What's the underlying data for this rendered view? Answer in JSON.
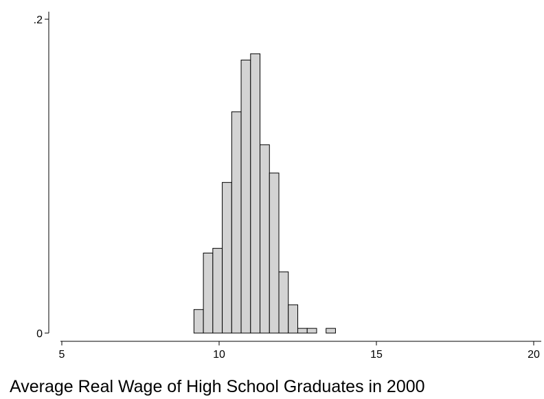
{
  "chart_data": {
    "type": "bar",
    "title": "",
    "xlabel": "Average Real Wage of High School Graduates in 2000",
    "ylabel": "",
    "xlim": [
      5,
      20.2
    ],
    "ylim": [
      0,
      0.2
    ],
    "grid": false,
    "x_ticks": [
      {
        "value": 5,
        "label": "5"
      },
      {
        "value": 10,
        "label": "10"
      },
      {
        "value": 15,
        "label": "15"
      },
      {
        "value": 20,
        "label": "20"
      }
    ],
    "y_ticks": [
      {
        "value": 0,
        "label": "0"
      },
      {
        "value": 0.2,
        "label": ".2"
      }
    ],
    "bin_width": 0.3,
    "bins": [
      {
        "x0": 9.2,
        "x1": 9.5,
        "y": 0.015
      },
      {
        "x0": 9.5,
        "x1": 9.8,
        "y": 0.051
      },
      {
        "x0": 9.8,
        "x1": 10.1,
        "y": 0.054
      },
      {
        "x0": 10.1,
        "x1": 10.4,
        "y": 0.096
      },
      {
        "x0": 10.4,
        "x1": 10.7,
        "y": 0.141
      },
      {
        "x0": 10.7,
        "x1": 11.0,
        "y": 0.174
      },
      {
        "x0": 11.0,
        "x1": 11.3,
        "y": 0.178
      },
      {
        "x0": 11.3,
        "x1": 11.6,
        "y": 0.12
      },
      {
        "x0": 11.6,
        "x1": 11.9,
        "y": 0.102
      },
      {
        "x0": 11.9,
        "x1": 12.2,
        "y": 0.039
      },
      {
        "x0": 12.2,
        "x1": 12.5,
        "y": 0.018
      },
      {
        "x0": 12.5,
        "x1": 12.8,
        "y": 0.003
      },
      {
        "x0": 12.8,
        "x1": 13.1,
        "y": 0.003
      },
      {
        "x0": 13.4,
        "x1": 13.7,
        "y": 0.003
      }
    ]
  }
}
